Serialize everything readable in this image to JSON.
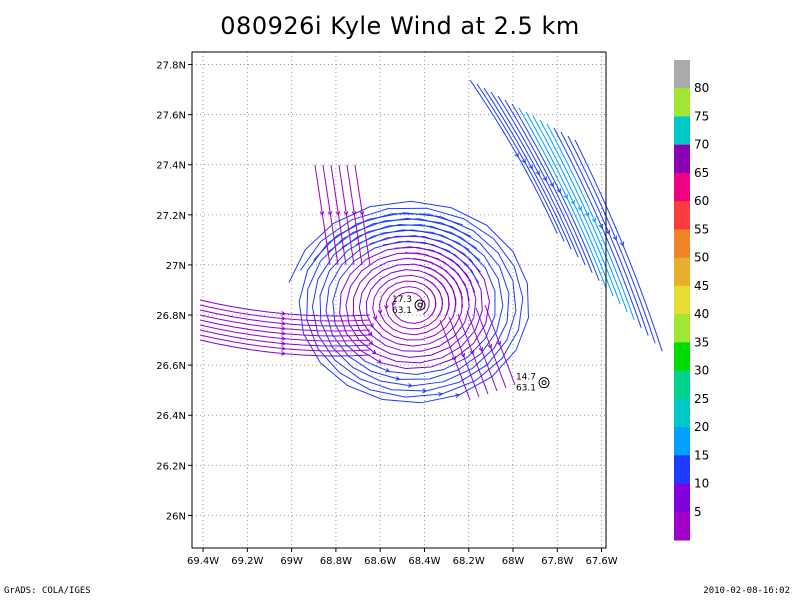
{
  "title": "080926i Kyle Wind at 2.5 km",
  "footer": {
    "left": "GrADS: COLA/IGES",
    "right": "2010-02-08-16:02"
  },
  "chart_data": {
    "type": "streamline",
    "x_ticks": [
      "69.4W",
      "69.2W",
      "69W",
      "68.8W",
      "68.6W",
      "68.4W",
      "68.2W",
      "68W",
      "67.8W",
      "67.6W"
    ],
    "x_values": [
      -69.4,
      -69.2,
      -69.0,
      -68.8,
      -68.6,
      -68.4,
      -68.2,
      -68.0,
      -67.8,
      -67.6
    ],
    "y_ticks": [
      "26N",
      "26.2N",
      "26.4N",
      "26.6N",
      "26.8N",
      "27N",
      "27.2N",
      "27.4N",
      "27.6N",
      "27.8N"
    ],
    "y_values": [
      26.0,
      26.2,
      26.4,
      26.6,
      26.8,
      27.0,
      27.2,
      27.4,
      27.6,
      27.8
    ],
    "xlim": [
      -69.45,
      -67.58
    ],
    "ylim": [
      25.87,
      27.85
    ],
    "grid": true,
    "storm_markers": [
      {
        "lon": -68.42,
        "lat": 26.84,
        "label_top": "17.3",
        "label_bottom": "63.1"
      },
      {
        "lon": -67.86,
        "lat": 26.53,
        "label_top": "14.7",
        "label_bottom": "63.1"
      }
    ],
    "colorbar": {
      "labels": [
        "5",
        "10",
        "15",
        "20",
        "25",
        "30",
        "35",
        "40",
        "45",
        "50",
        "55",
        "60",
        "65",
        "70",
        "75",
        "80"
      ],
      "colors": [
        "#a000c8",
        "#8200dc",
        "#1e3cff",
        "#00a0ff",
        "#00c8c8",
        "#00d28c",
        "#00dc00",
        "#a0e632",
        "#e6dc32",
        "#e6af2d",
        "#f08228",
        "#fa3c3c",
        "#f00082",
        "#8c00b4",
        "#00c8c8",
        "#a0e632",
        "#aaaaaa"
      ]
    }
  }
}
